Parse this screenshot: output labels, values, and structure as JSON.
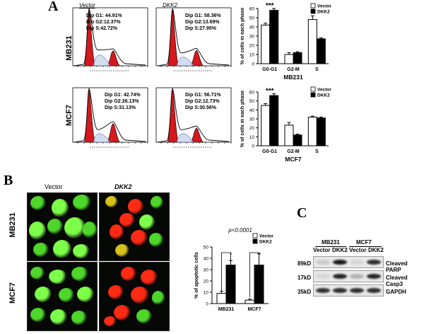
{
  "panelA": {
    "letter": "A",
    "conditions": [
      "Vector",
      "DKK2"
    ],
    "rows": [
      {
        "cell_line": "MB231",
        "histograms": [
          {
            "lines": [
              "Dip G1: 44.91%",
              "Dip G2:12.37%",
              "Dip S:42.72%"
            ]
          },
          {
            "lines": [
              "Dip G1: 58.36%",
              "Dip G2:13.69%",
              "Dip S:27.95%"
            ]
          }
        ]
      },
      {
        "cell_line": "MCF7",
        "histograms": [
          {
            "lines": [
              "Dip G1: 42.74%",
              "Dip G2:26.13%",
              "Dip S:31.13%"
            ]
          },
          {
            "lines": [
              "Dip G1: 56.71%",
              "Dip G2:12.73%",
              "Dip S:30.56%"
            ]
          }
        ]
      }
    ]
  },
  "panelB": {
    "letter": "B",
    "conditions": [
      "Vector",
      "DKK2"
    ],
    "row_labels": [
      "MB231",
      "MCF7"
    ]
  },
  "panelC": {
    "letter": "C",
    "groups": [
      "MB231",
      "MCF7"
    ],
    "lanes": [
      "Vector",
      "DKK2",
      "Vector",
      "DKK2"
    ],
    "rows": [
      {
        "marker": "89kD",
        "protein": "Cleaved PARP",
        "intensity": [
          0.15,
          0.95,
          0.1,
          0.85
        ]
      },
      {
        "marker": "17kD",
        "protein": "Cleaved Casp3",
        "intensity": [
          0.1,
          0.9,
          0.25,
          0.9
        ]
      },
      {
        "marker": "35kD",
        "protein": "GAPDH",
        "intensity": [
          0.85,
          0.85,
          0.85,
          0.85
        ]
      }
    ]
  },
  "chart_data": [
    {
      "type": "bar",
      "categories": [
        "G0-G1",
        "G2-M",
        "S"
      ],
      "series": [
        {
          "name": "Vector",
          "values": [
            42,
            10,
            48
          ],
          "errors": [
            2,
            2,
            4
          ]
        },
        {
          "name": "DKK2",
          "values": [
            58,
            12,
            27
          ],
          "errors": [
            2,
            1,
            1
          ]
        }
      ],
      "ylabel": "% of cells in each phase",
      "xlabel": "MB231",
      "ylim": [
        0,
        60
      ],
      "yticks": [
        0,
        10,
        20,
        30,
        40,
        50,
        60
      ],
      "annotations": [
        {
          "category": "G0-G1",
          "text": "***"
        }
      ]
    },
    {
      "type": "bar",
      "categories": [
        "G0-G1",
        "G2-M",
        "S"
      ],
      "series": [
        {
          "name": "Vector",
          "values": [
            45,
            23,
            32
          ],
          "errors": [
            2,
            3,
            1
          ]
        },
        {
          "name": "DKK2",
          "values": [
            56,
            12,
            31
          ],
          "errors": [
            2,
            1,
            1
          ]
        }
      ],
      "ylabel": "% of cells in each phase",
      "xlabel": "MCF7",
      "ylim": [
        0,
        60
      ],
      "yticks": [
        0,
        10,
        20,
        30,
        40,
        50,
        60
      ],
      "annotations": [
        {
          "category": "G0-G1",
          "text": "***"
        }
      ]
    },
    {
      "type": "bar",
      "categories": [
        "MB231",
        "MCF7"
      ],
      "series": [
        {
          "name": "Vector",
          "values": [
            9,
            3
          ],
          "errors": [
            2,
            1
          ]
        },
        {
          "name": "DKK2",
          "values": [
            34,
            34
          ],
          "errors": [
            4,
            10
          ]
        }
      ],
      "ylabel": "% of apoptotic cells",
      "ylim": [
        0,
        50
      ],
      "yticks": [
        0,
        10,
        20,
        30,
        40,
        50
      ],
      "annotations": [
        {
          "text": "p<0.0001"
        },
        {
          "text": "*"
        },
        {
          "text": "*"
        }
      ]
    }
  ]
}
